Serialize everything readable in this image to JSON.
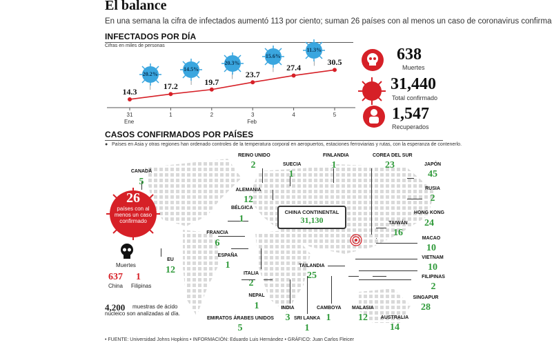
{
  "header": {
    "title": "El balance",
    "subtitle": "En una semana la cifra de infectados aumentó 113 por ciento; suman 26 países con al menos un caso de coronavirus confirmado."
  },
  "chart_data": {
    "type": "line",
    "title": "INFECTADOS POR DÍA",
    "ylabel": "Cifras en miles de personas",
    "x": [
      "31",
      "1",
      "2",
      "3",
      "4",
      "5"
    ],
    "x_month_labels": [
      "Ene",
      "Feb"
    ],
    "series": [
      {
        "values": [
          14.3,
          17.2,
          19.7,
          23.7,
          27.4,
          30.5
        ]
      }
    ],
    "point_labels": [
      "14.3",
      "17.2",
      "19.7",
      "23.7",
      "27.4",
      "30.5"
    ],
    "growth_labels": [
      "20.2%",
      "14.5%",
      "20.3%",
      "15.6%",
      "11.3%"
    ],
    "colors": {
      "line": "#d62027",
      "bubble": "#3aa6df"
    }
  },
  "stats": {
    "deaths_value": "638",
    "deaths_label": "Muertes",
    "total_value": "31,440",
    "total_label": "Total confirmado",
    "recovered_value": "1,547",
    "recovered_label": "Recuperados"
  },
  "countries_section": {
    "title": "CASOS CONFIRMADOS POR PAÍSES",
    "note": "Países en Asia y otras regiones han ordenado controles de la temperatura corporal en aeropuertos, estaciones ferroviarias y rutas, con la esperanza de contenerlo.",
    "badge_number": "26",
    "badge_text": "países con al menos un caso confirmado",
    "china_label": "CHINA CONTINENTAL",
    "china_value": "31,130",
    "countries": [
      {
        "name": "CANADÁ",
        "value": "5"
      },
      {
        "name": "REINO UNIDO",
        "value": "2"
      },
      {
        "name": "SUECIA",
        "value": "1"
      },
      {
        "name": "FINLANDIA",
        "value": "1"
      },
      {
        "name": "COREA DEL SUR",
        "value": "23"
      },
      {
        "name": "JAPÓN",
        "value": "45"
      },
      {
        "name": "ALEMANIA",
        "value": "12"
      },
      {
        "name": "RUSIA",
        "value": "2"
      },
      {
        "name": "BÉLGICA",
        "value": "1"
      },
      {
        "name": "HONG KONG",
        "value": "24"
      },
      {
        "name": "TAIWÁN",
        "value": "16"
      },
      {
        "name": "FRANCIA",
        "value": "6"
      },
      {
        "name": "MACAO",
        "value": "10"
      },
      {
        "name": "EU",
        "value": "12"
      },
      {
        "name": "ESPAÑA",
        "value": "1"
      },
      {
        "name": "VIETNAM",
        "value": "10"
      },
      {
        "name": "TAILANDIA",
        "value": "25"
      },
      {
        "name": "ITALIA",
        "value": "2"
      },
      {
        "name": "FILIPINAS",
        "value": "2"
      },
      {
        "name": "SINGAPUR",
        "value": "28"
      },
      {
        "name": "NEPAL",
        "value": "1"
      },
      {
        "name": "INDIA",
        "value": "3"
      },
      {
        "name": "CAMBOYA",
        "value": "1"
      },
      {
        "name": "MALASIA",
        "value": "12"
      },
      {
        "name": "AUSTRALIA",
        "value": "14"
      },
      {
        "name": "EMIRATOS ÁRABES UNIDOS",
        "value": "5"
      },
      {
        "name": "SRI LANKA",
        "value": "1"
      }
    ]
  },
  "deaths_panel": {
    "label": "Muertes",
    "china_value": "637",
    "china_label": "China",
    "philippines_value": "1",
    "philippines_label": "Filipinas"
  },
  "samples": {
    "value": "4,200",
    "text": "muestras de ácido nucleico son analizadas al día."
  },
  "footer": "• FUENTE: Universidad Johns Hopkins • INFORMACIÓN: Eduardo Luis Hernández • GRÁFICO: Juan Carlos Fleicer"
}
